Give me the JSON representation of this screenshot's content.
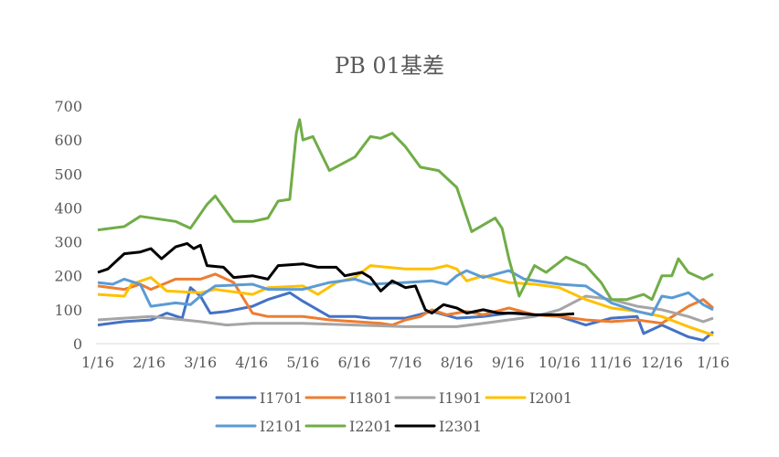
{
  "chart_data": {
    "type": "line",
    "title": "PB 01基差",
    "xlabel": "",
    "ylabel": "",
    "ylim": [
      0,
      700
    ],
    "yticks": [
      "0",
      "100",
      "200",
      "300",
      "400",
      "500",
      "600",
      "700"
    ],
    "xticks": [
      "1/16",
      "2/16",
      "3/16",
      "4/16",
      "5/16",
      "6/16",
      "7/16",
      "8/16",
      "9/16",
      "10/16",
      "11/16",
      "12/16",
      "1/16"
    ],
    "grid": false,
    "legend_position": "bottom",
    "series": [
      {
        "name": "I1701",
        "color": "#4472C4",
        "x": [
          "1/16",
          "2/1",
          "2/16",
          "2/25",
          "3/5",
          "3/10",
          "3/16",
          "3/22",
          "4/1",
          "4/16",
          "4/25",
          "5/8",
          "5/16",
          "6/1",
          "6/16",
          "6/25",
          "7/16",
          "8/1",
          "8/16",
          "9/1",
          "9/16",
          "10/1",
          "10/16",
          "11/1",
          "11/16",
          "12/1",
          "12/5",
          "12/16",
          "1/1",
          "1/10",
          "1/16"
        ],
        "y": [
          55,
          65,
          70,
          90,
          75,
          165,
          140,
          90,
          95,
          110,
          130,
          150,
          125,
          80,
          80,
          75,
          75,
          95,
          75,
          80,
          90,
          85,
          80,
          55,
          75,
          80,
          30,
          55,
          20,
          10,
          35
        ]
      },
      {
        "name": "I1801",
        "color": "#ED7D31",
        "x": [
          "1/16",
          "2/1",
          "2/10",
          "2/16",
          "3/1",
          "3/16",
          "3/25",
          "4/5",
          "4/16",
          "4/25",
          "5/16",
          "6/1",
          "6/16",
          "7/1",
          "7/8",
          "7/16",
          "7/25",
          "8/1",
          "8/10",
          "8/22",
          "9/1",
          "9/16",
          "10/1",
          "10/16",
          "11/1",
          "11/16",
          "12/1",
          "12/16",
          "1/1",
          "1/10",
          "1/16"
        ],
        "y": [
          170,
          160,
          175,
          160,
          190,
          190,
          205,
          180,
          90,
          80,
          80,
          70,
          65,
          60,
          55,
          70,
          80,
          100,
          85,
          95,
          85,
          105,
          85,
          80,
          70,
          65,
          70,
          60,
          110,
          130,
          105
        ]
      },
      {
        "name": "I1901",
        "color": "#A5A5A5",
        "x": [
          "1/16",
          "2/1",
          "2/16",
          "3/16",
          "4/1",
          "4/16",
          "5/16",
          "6/16",
          "7/16",
          "8/16",
          "9/1",
          "9/16",
          "10/1",
          "10/16",
          "11/1",
          "11/16",
          "12/1",
          "12/16",
          "1/1",
          "1/10",
          "1/16"
        ],
        "y": [
          70,
          75,
          80,
          65,
          55,
          60,
          60,
          55,
          50,
          50,
          60,
          70,
          80,
          100,
          140,
          130,
          110,
          100,
          80,
          65,
          75
        ]
      },
      {
        "name": "I2001",
        "color": "#FFC000",
        "x": [
          "1/16",
          "2/1",
          "2/5",
          "2/16",
          "2/25",
          "3/16",
          "3/25",
          "4/16",
          "4/25",
          "5/16",
          "5/25",
          "6/5",
          "6/16",
          "6/25",
          "7/16",
          "8/1",
          "8/10",
          "8/16",
          "8/22",
          "9/1",
          "9/16",
          "10/1",
          "10/16",
          "11/1",
          "11/16",
          "12/1",
          "12/16",
          "1/1",
          "1/16"
        ],
        "y": [
          145,
          140,
          175,
          195,
          155,
          150,
          160,
          145,
          165,
          170,
          145,
          180,
          195,
          230,
          220,
          220,
          230,
          220,
          185,
          200,
          180,
          175,
          165,
          130,
          105,
          95,
          80,
          50,
          25
        ]
      },
      {
        "name": "I2101",
        "color": "#5B9BD5",
        "x": [
          "1/16",
          "1/25",
          "2/1",
          "2/10",
          "2/16",
          "3/1",
          "3/10",
          "3/16",
          "3/25",
          "4/16",
          "4/25",
          "5/16",
          "6/1",
          "6/16",
          "6/25",
          "7/16",
          "8/1",
          "8/10",
          "8/16",
          "8/22",
          "9/1",
          "9/16",
          "9/25",
          "10/16",
          "11/1",
          "11/16",
          "12/1",
          "12/10",
          "12/16",
          "12/22",
          "1/1",
          "1/10",
          "1/16"
        ],
        "y": [
          180,
          175,
          190,
          175,
          110,
          120,
          115,
          140,
          170,
          175,
          160,
          160,
          180,
          190,
          175,
          180,
          185,
          175,
          200,
          215,
          195,
          215,
          190,
          175,
          170,
          120,
          95,
          85,
          140,
          135,
          150,
          115,
          100
        ]
      },
      {
        "name": "I2201",
        "color": "#70AD47",
        "x": [
          "1/16",
          "2/1",
          "2/10",
          "3/1",
          "3/10",
          "3/20",
          "3/25",
          "4/5",
          "4/16",
          "4/25",
          "5/1",
          "5/8",
          "5/12",
          "5/14",
          "5/16",
          "5/22",
          "6/1",
          "6/16",
          "6/25",
          "7/1",
          "7/8",
          "7/16",
          "7/25",
          "8/5",
          "8/16",
          "8/25",
          "9/8",
          "9/12",
          "9/16",
          "9/22",
          "10/1",
          "10/8",
          "10/16",
          "10/20",
          "11/1",
          "11/10",
          "11/16",
          "11/25",
          "12/5",
          "12/10",
          "12/16",
          "12/22",
          "12/26",
          "1/1",
          "1/10",
          "1/16"
        ],
        "y": [
          335,
          345,
          375,
          360,
          340,
          410,
          435,
          360,
          360,
          370,
          420,
          425,
          620,
          660,
          600,
          610,
          510,
          550,
          610,
          605,
          620,
          580,
          520,
          510,
          460,
          330,
          370,
          340,
          250,
          140,
          230,
          210,
          240,
          255,
          230,
          180,
          130,
          130,
          145,
          130,
          200,
          200,
          250,
          210,
          190,
          205
        ]
      },
      {
        "name": "I2301",
        "color": "#000000",
        "x": [
          "1/16",
          "1/22",
          "2/1",
          "2/10",
          "2/16",
          "2/22",
          "3/1",
          "3/8",
          "3/12",
          "3/16",
          "3/20",
          "3/30",
          "4/5",
          "4/16",
          "4/25",
          "5/1",
          "5/16",
          "5/25",
          "6/5",
          "6/10",
          "6/20",
          "6/25",
          "7/1",
          "7/8",
          "7/16",
          "7/22",
          "7/28",
          "8/1",
          "8/8",
          "8/16",
          "8/22",
          "9/1",
          "9/10",
          "9/20",
          "10/1",
          "10/16",
          "10/25"
        ],
        "y": [
          210,
          220,
          265,
          270,
          280,
          250,
          285,
          295,
          280,
          290,
          230,
          225,
          195,
          200,
          190,
          230,
          235,
          225,
          225,
          200,
          210,
          195,
          155,
          185,
          165,
          170,
          100,
          90,
          115,
          105,
          90,
          100,
          90,
          90,
          85,
          85,
          88
        ]
      }
    ]
  }
}
